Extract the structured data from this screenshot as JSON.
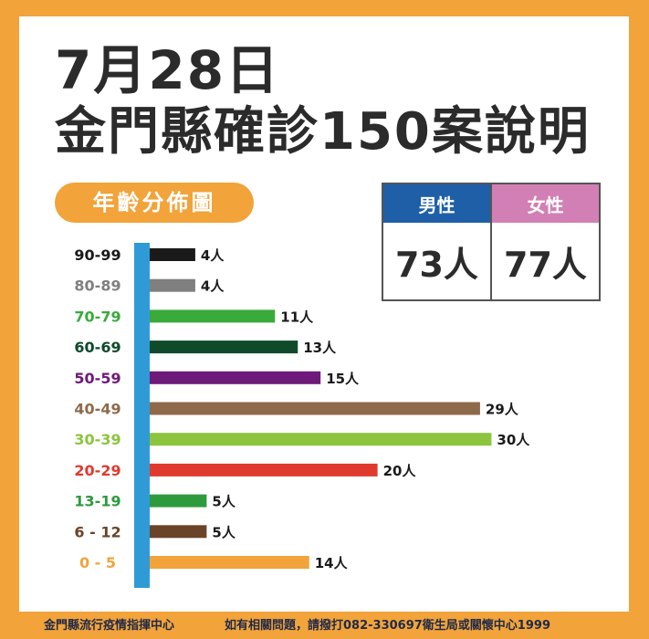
{
  "title": {
    "date": "7月28日",
    "headline": "金門縣確診150案說明"
  },
  "age_label": "年齡分佈圖",
  "gender": {
    "male": {
      "label": "男性",
      "value": "73人",
      "color": "#1f5fa8"
    },
    "female": {
      "label": "女性",
      "value": "77人",
      "color": "#d27fb5"
    }
  },
  "chart_data": {
    "type": "bar",
    "orientation": "horizontal",
    "title": "年齡分佈圖",
    "categories": [
      "90-99",
      "80-89",
      "70-79",
      "60-69",
      "50-59",
      "40-49",
      "30-39",
      "20-29",
      "13-19",
      "6-12",
      "0-5"
    ],
    "category_labels": [
      "90-99",
      "80-89",
      "70-79",
      "60-69",
      "50-59",
      "40-49",
      "30-39",
      "20-29",
      "13-19",
      "6 - 12",
      "0 - 5"
    ],
    "values": [
      4,
      4,
      11,
      13,
      15,
      29,
      30,
      20,
      5,
      5,
      14
    ],
    "value_labels": [
      "4人",
      "4人",
      "11人",
      "13人",
      "15人",
      "29人",
      "30人",
      "20人",
      "5人",
      "5人",
      "14人"
    ],
    "colors": [
      "#1a1a1a",
      "#7f7f7f",
      "#3aaa3a",
      "#0f4a2a",
      "#6d1a7a",
      "#8e6a4a",
      "#8cc43e",
      "#e03a2f",
      "#2e9a3e",
      "#6a4428",
      "#f2a33a"
    ],
    "axis_color": "#2f9bd6",
    "xlim": [
      0,
      30
    ]
  },
  "footer": {
    "left": "金門縣流行疫情指揮中心",
    "right": "如有相關問題，請撥打082-330697衛生局或關懷中心1999"
  }
}
